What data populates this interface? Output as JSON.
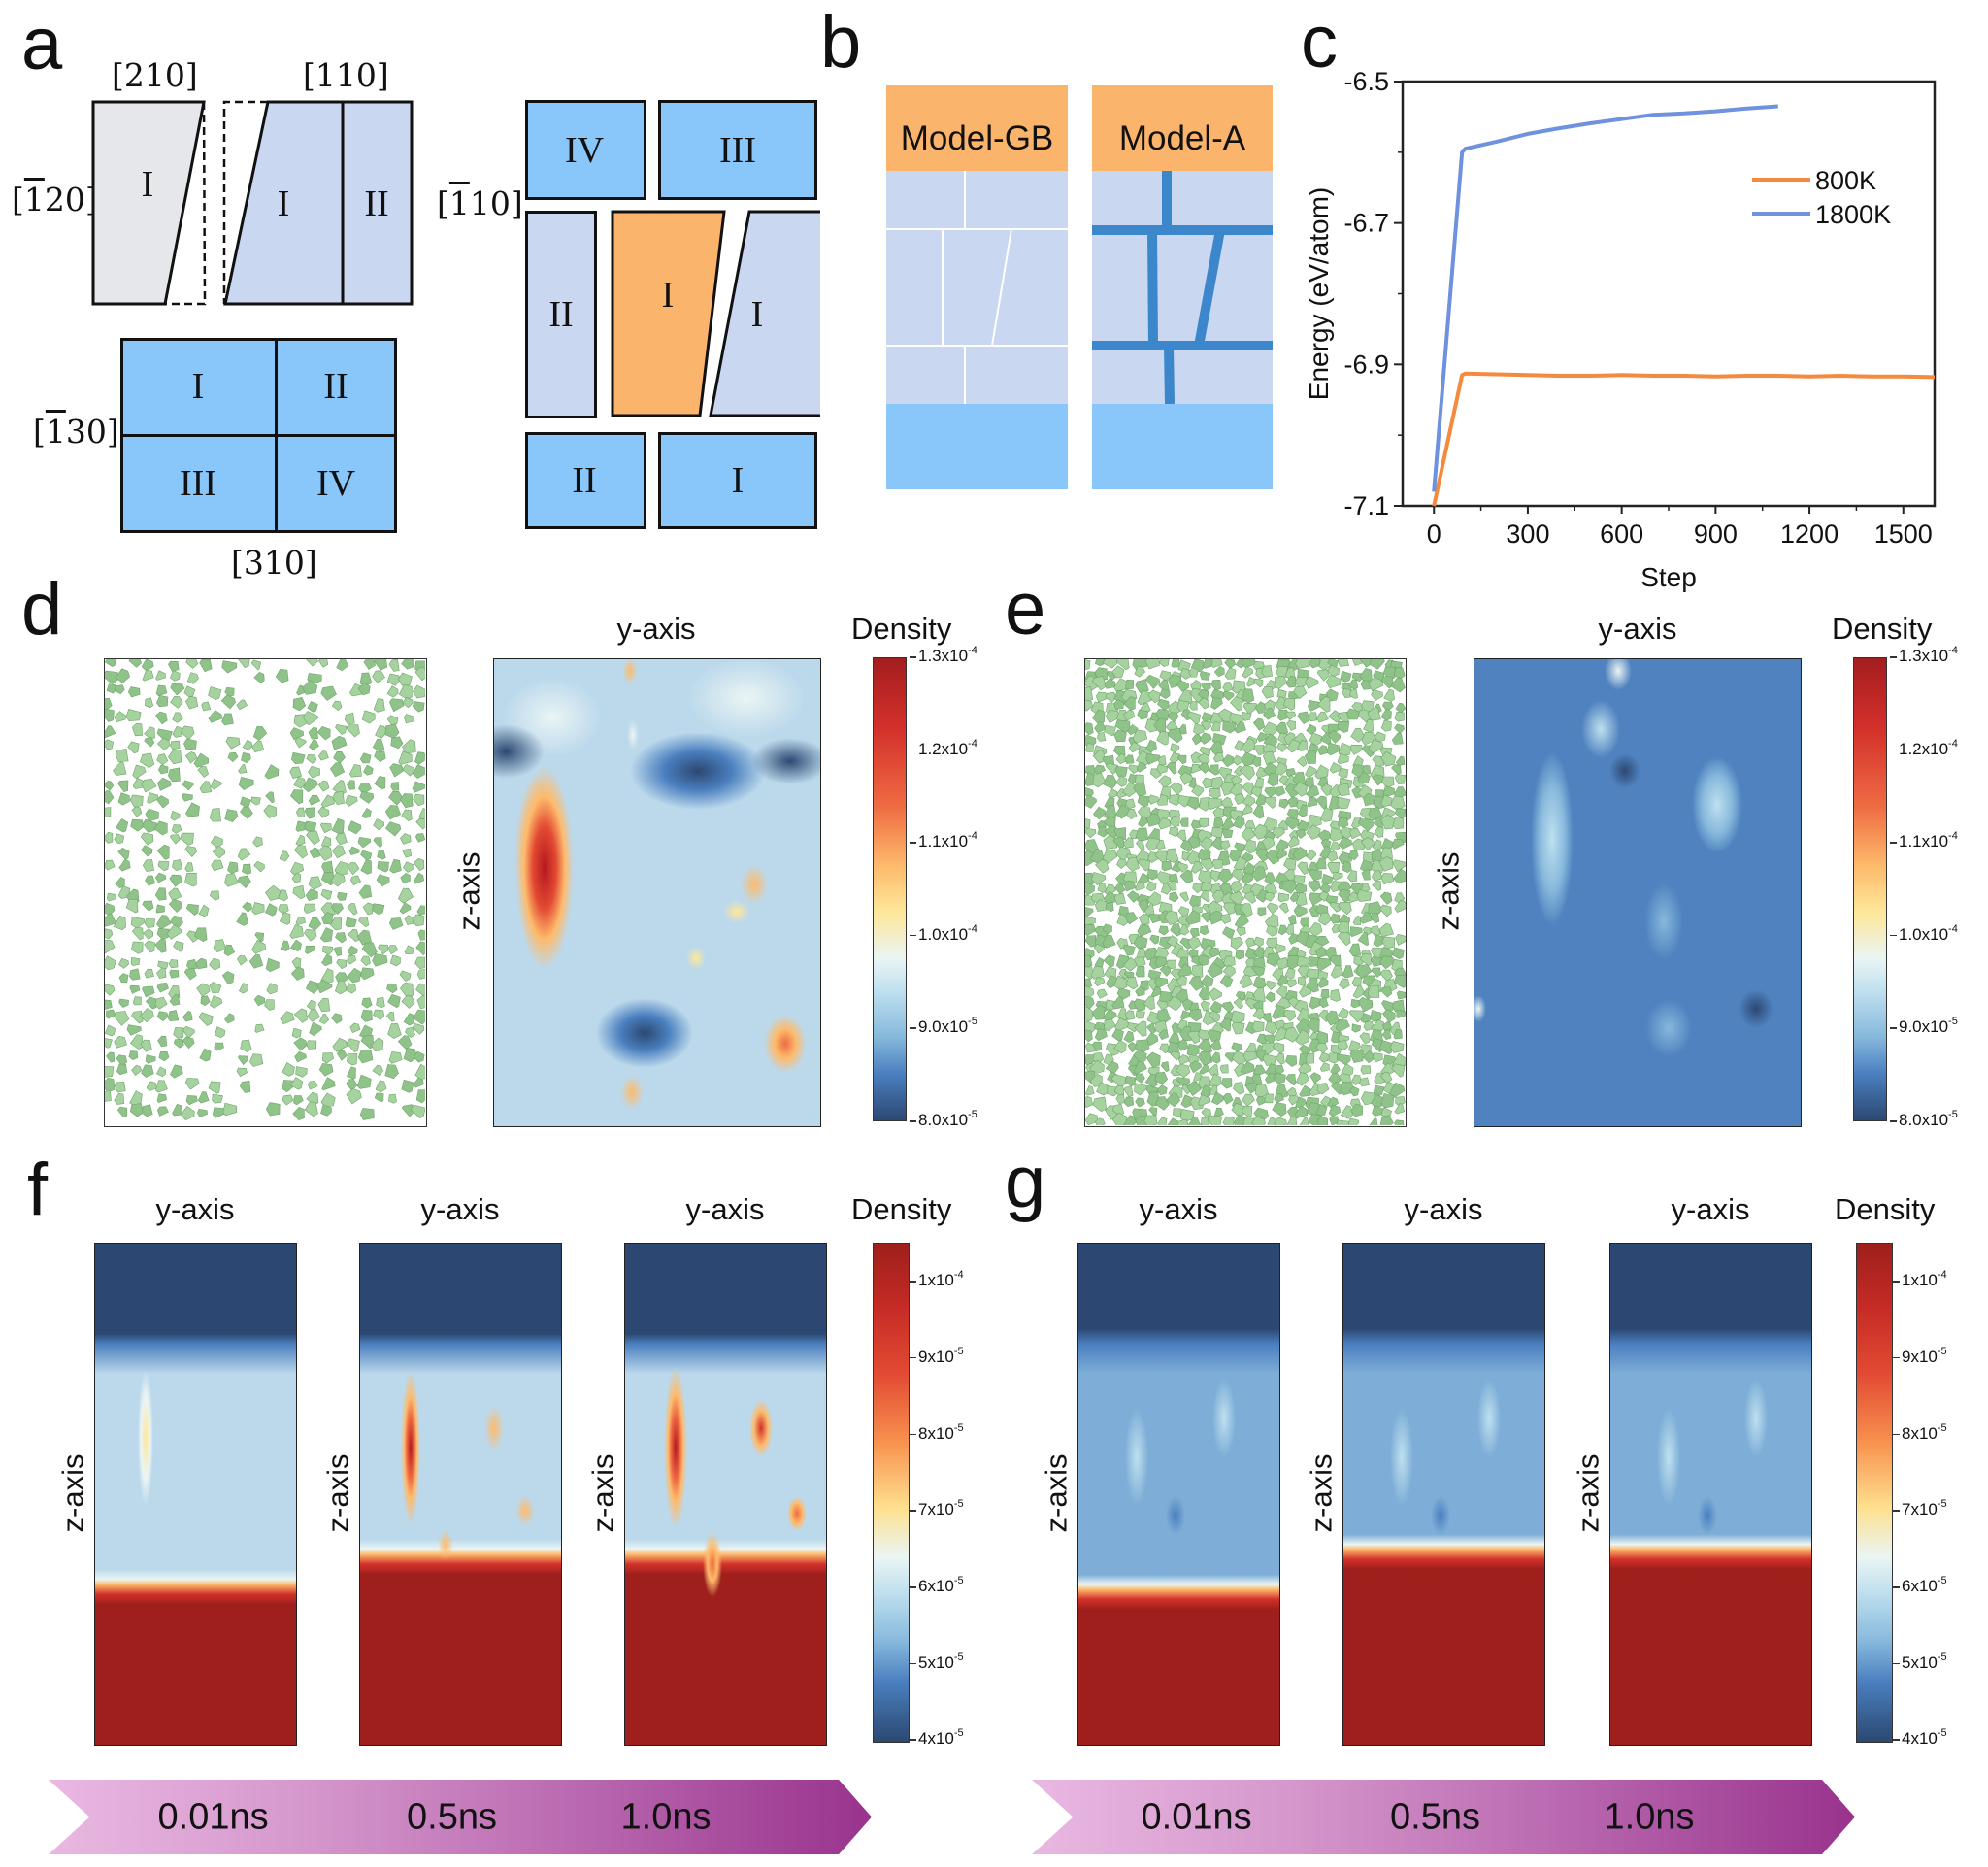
{
  "panels": {
    "a": {
      "label": "a",
      "directions": {
        "d210": "[210]",
        "d110": "[110]",
        "dm120": "[̅1̅120]",
        "dm130": "[̅1̅130]",
        "d310": "[310]",
        "dm110": "[̅1̅110]"
      },
      "dir_text": {
        "d210": "[210]",
        "d110": "[110]",
        "dm120_a": "[",
        "dm120_b": "1",
        "dm120_c": "20]",
        "dm130_a": "[",
        "dm130_b": "1",
        "dm130_c": "30]",
        "dm110_a": "[",
        "dm110_b": "1",
        "dm110_c": "10]",
        "d310": "[310]"
      },
      "grains": {
        "top_left": "I",
        "top_mid_1": "I",
        "top_mid_2": "II",
        "bottom_grid": [
          "I",
          "II",
          "III",
          "IV"
        ],
        "right_grid": {
          "top_left": "IV",
          "top_right": "III",
          "mid_left": "II",
          "mid_center": "I",
          "mid_right": "I",
          "bottom_left": "II",
          "bottom_right": "I"
        }
      },
      "colors": {
        "light_blue": "#89c6fa",
        "lavender": "#c9d7f0",
        "gray": "#e6e7eb",
        "orange": "#fbb46c"
      }
    },
    "b": {
      "label": "b",
      "models": [
        "Model-GB",
        "Model-A"
      ],
      "colors": {
        "header": "#fbb46c",
        "grain": "#c9d7f0",
        "substrate": "#89c6fa",
        "amorphous_boundary": "#3c87cc"
      }
    },
    "c": {
      "label": "c"
    },
    "d": {
      "label": "d",
      "heatmap_title": "y-axis",
      "heatmap_ylabel": "z-axis",
      "colorbar_title": "Density"
    },
    "e": {
      "label": "e",
      "heatmap_title": "y-axis",
      "heatmap_ylabel": "z-axis",
      "colorbar_title": "Density"
    },
    "f": {
      "label": "f",
      "titles": [
        "y-axis",
        "y-axis",
        "y-axis"
      ],
      "ylabel": "z-axis",
      "colorbar_title": "Density",
      "times": [
        "0.01ns",
        "0.5ns",
        "1.0ns"
      ]
    },
    "g": {
      "label": "g",
      "titles": [
        "y-axis",
        "y-axis",
        "y-axis"
      ],
      "ylabel": "z-axis",
      "colorbar_title": "Density",
      "times": [
        "0.01ns",
        "0.5ns",
        "1.0ns"
      ]
    }
  },
  "colorbars": {
    "de": {
      "ticks": [
        {
          "m": "1.3x10",
          "e": "-4"
        },
        {
          "m": "1.2x10",
          "e": "-4"
        },
        {
          "m": "1.1x10",
          "e": "-4"
        },
        {
          "m": "1.0x10",
          "e": "-4"
        },
        {
          "m": "9.0x10",
          "e": "-5"
        },
        {
          "m": "8.0x10",
          "e": "-5"
        }
      ],
      "range": [
        8e-05,
        0.00013
      ]
    },
    "fg": {
      "ticks": [
        {
          "m": "1x10",
          "e": "-4"
        },
        {
          "m": "9x10",
          "e": "-5"
        },
        {
          "m": "8x10",
          "e": "-5"
        },
        {
          "m": "7x10",
          "e": "-5"
        },
        {
          "m": "6x10",
          "e": "-5"
        },
        {
          "m": "5x10",
          "e": "-5"
        },
        {
          "m": "4x10",
          "e": "-5"
        }
      ],
      "range": [
        4e-05,
        0.000105
      ]
    }
  },
  "chart_data": {
    "type": "line",
    "title": "",
    "xlabel": "Step",
    "ylabel": "Energy (eV/atom)",
    "xlim": [
      -100,
      1600
    ],
    "ylim": [
      -7.1,
      -6.5
    ],
    "xticks": [
      0,
      300,
      600,
      900,
      1200,
      1500
    ],
    "yticks": [
      -6.5,
      -6.7,
      -6.9,
      -7.1
    ],
    "ytick_labels": [
      "-6.5",
      "-6.7",
      "-6.9",
      "-7.1"
    ],
    "grid": false,
    "legend_position": "top-right",
    "series": [
      {
        "name": "800K",
        "color": "#f58a3f",
        "x": [
          0,
          90,
          100,
          200,
          300,
          400,
          500,
          600,
          700,
          800,
          900,
          1000,
          1100,
          1200,
          1300,
          1400,
          1500,
          1600
        ],
        "y": [
          -7.1,
          -6.915,
          -6.913,
          -6.914,
          -6.915,
          -6.916,
          -6.916,
          -6.915,
          -6.916,
          -6.916,
          -6.917,
          -6.916,
          -6.916,
          -6.917,
          -6.916,
          -6.917,
          -6.917,
          -6.918
        ]
      },
      {
        "name": "1800K",
        "color": "#6f92de",
        "x": [
          0,
          90,
          100,
          200,
          300,
          400,
          500,
          600,
          700,
          800,
          900,
          1000,
          1100
        ],
        "y": [
          -7.08,
          -6.6,
          -6.595,
          -6.585,
          -6.574,
          -6.566,
          -6.559,
          -6.553,
          -6.547,
          -6.545,
          -6.542,
          -6.538,
          -6.535
        ]
      }
    ]
  }
}
